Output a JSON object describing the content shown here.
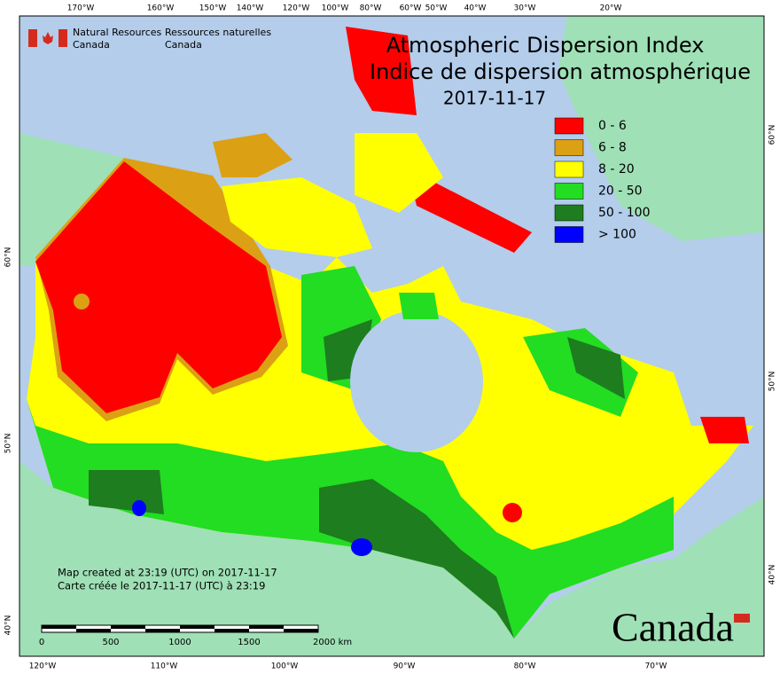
{
  "header": {
    "org_en": [
      "Natural Resources",
      "Canada"
    ],
    "org_fr": [
      "Ressources naturelles",
      "Canada"
    ]
  },
  "title": [
    "Atmospheric Dispersion Index",
    "Indice de dispersion atmosphérique",
    "2017-11-17"
  ],
  "legend": [
    {
      "label": "0 - 6",
      "color": "#ff0000"
    },
    {
      "label": "6 - 8",
      "color": "#dca014"
    },
    {
      "label": "8 - 20",
      "color": "#ffff00"
    },
    {
      "label": "20 - 50",
      "color": "#22dd22"
    },
    {
      "label": "50 - 100",
      "color": "#1e7d1e"
    },
    {
      "label": "> 100",
      "color": "#0000ff"
    }
  ],
  "graticule": {
    "top": [
      "170°W",
      "160°W",
      "150°W",
      "140°W",
      "120°W",
      "100°W",
      "80°W",
      "60°W",
      "50°W",
      "40°W",
      "30°W",
      "20°W"
    ],
    "bottom": [
      "120°W",
      "110°W",
      "100°W",
      "90°W",
      "80°W",
      "70°W"
    ],
    "left": [
      "60°N",
      "50°N",
      "40°N"
    ],
    "right": [
      "60°N",
      "50°N",
      "40°N"
    ]
  },
  "notes": [
    "Map created at 23:19 (UTC) on 2017-11-17",
    "Carte créée le 2017-11-17 (UTC) à 23:19"
  ],
  "scale_bar": [
    "0",
    "500",
    "1000",
    "1500",
    "2000 km"
  ],
  "wordmark": "Canada"
}
